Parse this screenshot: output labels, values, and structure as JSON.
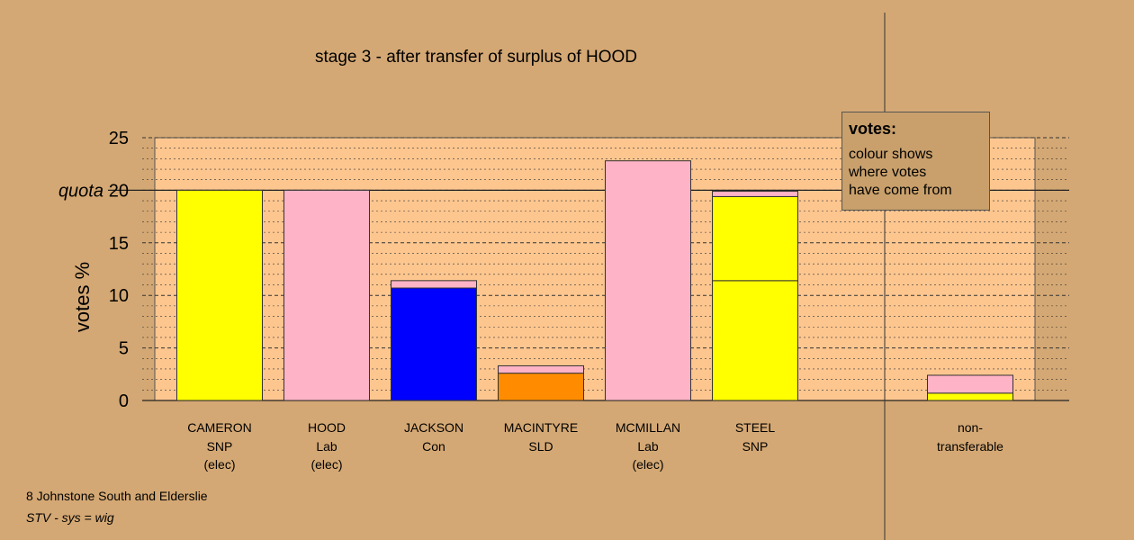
{
  "title": "stage 3 - after transfer of surplus of HOOD",
  "footer": {
    "line1": "8 Johnstone South and Elderslie",
    "line2": "STV - sys = wig"
  },
  "legend": {
    "title": "votes:",
    "lines": [
      "colour shows",
      "where votes",
      "have come from"
    ]
  },
  "colors": {
    "background": "#d4a874",
    "plot": "#fdc68f",
    "snp": "#ffff00",
    "lab": "#ffb3c6",
    "con": "#0000ff",
    "sld": "#ff8c00"
  },
  "chart_data": {
    "type": "bar",
    "stacked": true,
    "ylabel": "votes %",
    "ylim": [
      0,
      25
    ],
    "yticks": [
      0,
      5,
      10,
      15,
      20,
      25
    ],
    "quota": 20,
    "quota_label": "quota",
    "grid": true,
    "categories": [
      {
        "name": "CAMERON",
        "party": "SNP",
        "note": "(elec)",
        "segments": [
          {
            "color": "#ffff00",
            "value": 20.0
          }
        ]
      },
      {
        "name": "HOOD",
        "party": "Lab",
        "note": "(elec)",
        "segments": [
          {
            "color": "#ffb3c6",
            "value": 20.0
          }
        ]
      },
      {
        "name": "JACKSON",
        "party": "Con",
        "note": "",
        "segments": [
          {
            "color": "#0000ff",
            "value": 10.7
          },
          {
            "color": "#ffb3c6",
            "value": 0.7
          }
        ]
      },
      {
        "name": "MACINTYRE",
        "party": "SLD",
        "note": "",
        "segments": [
          {
            "color": "#ff8c00",
            "value": 2.6
          },
          {
            "color": "#ffb3c6",
            "value": 0.7
          }
        ]
      },
      {
        "name": "MCMILLAN",
        "party": "Lab",
        "note": "(elec)",
        "segments": [
          {
            "color": "#ffb3c6",
            "value": 22.8
          }
        ]
      },
      {
        "name": "STEEL",
        "party": "SNP",
        "note": "",
        "segments": [
          {
            "color": "#ffff00",
            "value": 11.4
          },
          {
            "color": "#ffff00",
            "value": 8.0
          },
          {
            "color": "#ffb3c6",
            "value": 0.5
          }
        ]
      },
      {
        "name": "non-",
        "party": "transferable",
        "note": "",
        "segments": [
          {
            "color": "#ffff00",
            "value": 0.7
          },
          {
            "color": "#ffb3c6",
            "value": 1.7
          }
        ]
      }
    ]
  }
}
